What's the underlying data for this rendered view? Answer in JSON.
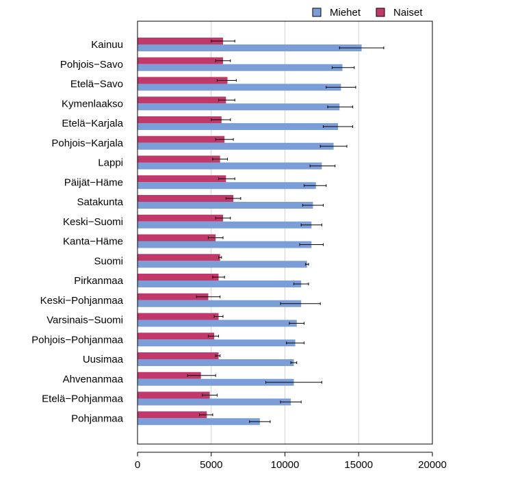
{
  "chart_data": {
    "type": "bar",
    "orientation": "horizontal",
    "title": "",
    "xlabel": "",
    "ylabel": "",
    "xlim": [
      0,
      20000
    ],
    "xticks": [
      0,
      5000,
      10000,
      15000,
      20000
    ],
    "grid": true,
    "legend_position": "top-right",
    "categories": [
      "Kainuu",
      "Pohjois−Savo",
      "Etelä−Savo",
      "Kymenlaakso",
      "Etelä−Karjala",
      "Pohjois−Karjala",
      "Lappi",
      "Päijät−Häme",
      "Satakunta",
      "Keski−Suomi",
      "Kanta−Häme",
      "Suomi",
      "Pirkanmaa",
      "Keski−Pohjanmaa",
      "Varsinais−Suomi",
      "Pohjois−Pohjanmaa",
      "Uusimaa",
      "Ahvenanmaa",
      "Etelä−Pohjanmaa",
      "Pohjanmaa"
    ],
    "series": [
      {
        "name": "Naiset",
        "color": "#C0396A",
        "values": [
          5800,
          5800,
          6100,
          6000,
          5700,
          5900,
          5600,
          6000,
          6500,
          5800,
          5300,
          5600,
          5500,
          4800,
          5500,
          5200,
          5500,
          4300,
          4900,
          4700
        ],
        "error_low": [
          5000,
          5300,
          5400,
          5500,
          5000,
          5300,
          5100,
          5500,
          6000,
          5300,
          4800,
          5500,
          5100,
          4000,
          5200,
          4800,
          5300,
          3400,
          4400,
          4200
        ],
        "error_high": [
          6600,
          6300,
          6700,
          6600,
          6300,
          6500,
          6100,
          6600,
          7000,
          6300,
          5800,
          5700,
          5900,
          5600,
          5800,
          5500,
          5600,
          5300,
          5400,
          5100
        ]
      },
      {
        "name": "Miehet",
        "color": "#7B9ED9",
        "values": [
          15200,
          13900,
          13800,
          13700,
          13600,
          13300,
          12500,
          12100,
          11900,
          11800,
          11800,
          11500,
          11100,
          11100,
          10800,
          10700,
          10600,
          10600,
          10400,
          8300
        ],
        "error_low": [
          13700,
          13200,
          12800,
          12900,
          12600,
          12400,
          11700,
          11300,
          11200,
          11100,
          11000,
          11400,
          10600,
          9700,
          10300,
          10100,
          10400,
          8700,
          9700,
          7600
        ],
        "error_high": [
          16700,
          14700,
          14800,
          14600,
          14600,
          14200,
          13400,
          12800,
          12600,
          12500,
          12600,
          11600,
          11600,
          12400,
          11300,
          11300,
          10800,
          12500,
          11100,
          9000
        ]
      }
    ]
  }
}
